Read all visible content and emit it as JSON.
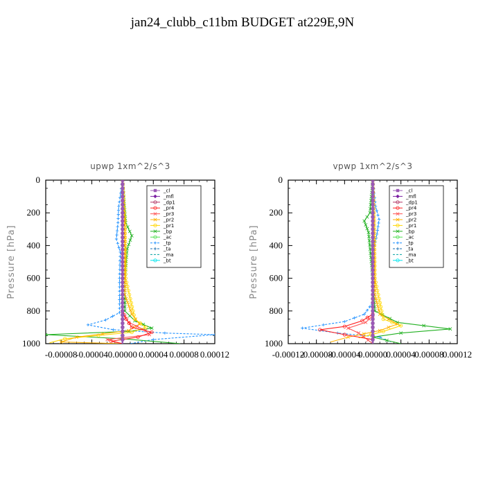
{
  "page_title": "jan24_clubb_c11bm  BUDGET at229E,9N",
  "legend_entries": [
    "_cl",
    "_mfl",
    "_dp1",
    "_pr4",
    "_pr3",
    "_pr2",
    "_pr1",
    "_bp",
    "_ac",
    "_tp",
    "_ta",
    "_ma",
    "_bt"
  ],
  "legend_colors": [
    "#9b59b6",
    "#7b1fa2",
    "#b03060",
    "#ff2020",
    "#ff5050",
    "#ffb000",
    "#ffd700",
    "#20b020",
    "#50e050",
    "#1e90ff",
    "#1a6fb0",
    "#00a0a0",
    "#00e5ee"
  ],
  "chart_data": [
    {
      "type": "line",
      "title": "upwp   1xm^2/s^3",
      "ylabel": "Pressure [hPa]",
      "xlabel": "",
      "xlim": [
        -0.0001,
        0.00012
      ],
      "ylim": [
        1000,
        0
      ],
      "xticks": [
        -8e-05,
        -4e-05,
        0,
        4e-05,
        8e-05,
        0.00012
      ],
      "xtick_labels": [
        "-0.00008",
        "-0.00004",
        "0.00000",
        "0.00004",
        "0.00008",
        "0.00012"
      ],
      "yticks": [
        0,
        200,
        400,
        600,
        800,
        1000
      ],
      "ytick_labels": [
        "0",
        "200",
        "400",
        "600",
        "800",
        "1000"
      ],
      "legend_position": "top-right",
      "series": [
        {
          "name": "_cl",
          "points": [
            [
              0,
              0
            ],
            [
              0,
              500
            ],
            [
              0,
              1000
            ]
          ]
        },
        {
          "name": "_mfl",
          "points": [
            [
              0,
              0
            ],
            [
              0,
              500
            ],
            [
              0,
              1000
            ]
          ]
        },
        {
          "name": "_dp1",
          "points": [
            [
              0,
              0
            ],
            [
              0,
              500
            ],
            [
              0,
              900
            ],
            [
              0,
              1000
            ]
          ]
        },
        {
          "name": "_pr4",
          "points": [
            [
              0,
              800
            ],
            [
              5e-06,
              850
            ],
            [
              1.2e-05,
              900
            ],
            [
              3.8e-05,
              930
            ],
            [
              2e-05,
              960
            ],
            [
              -1.5e-05,
              985
            ],
            [
              0,
              1000
            ]
          ]
        },
        {
          "name": "_pr3",
          "points": [
            [
              0,
              820
            ],
            [
              8e-06,
              870
            ],
            [
              3e-05,
              920
            ],
            [
              3.5e-05,
              945
            ],
            [
              -2e-05,
              975
            ],
            [
              0,
              1000
            ]
          ]
        },
        {
          "name": "_pr2",
          "points": [
            [
              0,
              0
            ],
            [
              3e-06,
              300
            ],
            [
              3e-06,
              700
            ],
            [
              1.2e-05,
              820
            ],
            [
              2.2e-05,
              880
            ],
            [
              8e-06,
              920
            ],
            [
              -6e-05,
              960
            ],
            [
              -8e-05,
              990
            ],
            [
              0,
              1000
            ]
          ]
        },
        {
          "name": "_pr1",
          "points": [
            [
              0,
              0
            ],
            [
              3e-06,
              250
            ],
            [
              4e-06,
              600
            ],
            [
              1.6e-05,
              850
            ],
            [
              3e-05,
              900
            ],
            [
              1.2e-05,
              930
            ],
            [
              -7.5e-05,
              970
            ],
            [
              -9.5e-05,
              995
            ]
          ]
        },
        {
          "name": "_bp",
          "points": [
            [
              0,
              0
            ],
            [
              4e-06,
              260
            ],
            [
              1.2e-05,
              340
            ],
            [
              6e-06,
              420
            ],
            [
              3e-06,
              600
            ],
            [
              3e-06,
              800
            ],
            [
              1.6e-05,
              860
            ],
            [
              3.8e-05,
              905
            ],
            [
              8e-06,
              925
            ],
            [
              -0.0001,
              945
            ],
            [
              0,
              970
            ],
            [
              7.5e-05,
              1000
            ]
          ]
        },
        {
          "name": "_ac",
          "points": [
            [
              0,
              0
            ],
            [
              0,
              500
            ],
            [
              0,
              1000
            ]
          ]
        },
        {
          "name": "_tp",
          "points": [
            [
              0,
              0
            ],
            [
              -5e-06,
              160
            ],
            [
              -6e-06,
              260
            ],
            [
              -8e-06,
              360
            ],
            [
              -3e-06,
              440
            ],
            [
              -4e-06,
              600
            ],
            [
              -4e-06,
              810
            ],
            [
              -2.2e-05,
              855
            ],
            [
              -4.5e-05,
              885
            ],
            [
              -1.2e-05,
              915
            ],
            [
              5.5e-05,
              935
            ],
            [
              0.00012,
              945
            ],
            [
              4e-05,
              975
            ],
            [
              1e-05,
              1000
            ]
          ]
        },
        {
          "name": "_ta",
          "points": [
            [
              0,
              0
            ],
            [
              0,
              500
            ],
            [
              0,
              1000
            ]
          ]
        },
        {
          "name": "_ma",
          "points": [
            [
              0,
              0
            ],
            [
              0,
              500
            ],
            [
              0,
              1000
            ]
          ]
        },
        {
          "name": "_bt",
          "points": [
            [
              0,
              0
            ],
            [
              0,
              500
            ],
            [
              0,
              1000
            ]
          ]
        }
      ]
    },
    {
      "type": "line",
      "title": "vpwp   1xm^2/s^3",
      "ylabel": "Pressure [hPa]",
      "xlabel": "",
      "xlim": [
        -0.00012,
        0.00012
      ],
      "ylim": [
        1000,
        0
      ],
      "xticks": [
        -0.00012,
        -8e-05,
        -4e-05,
        0,
        4e-05,
        8e-05,
        0.00012
      ],
      "xtick_labels": [
        "-0.00012",
        "-0.00008",
        "-0.00004",
        "0.00000",
        "0.00004",
        "0.00008",
        "0.00012"
      ],
      "yticks": [
        0,
        200,
        400,
        600,
        800,
        1000
      ],
      "ytick_labels": [
        "0",
        "200",
        "400",
        "600",
        "800",
        "1000"
      ],
      "legend_position": "top-right",
      "series": [
        {
          "name": "_cl",
          "points": [
            [
              0,
              0
            ],
            [
              0,
              500
            ],
            [
              0,
              1000
            ]
          ]
        },
        {
          "name": "_mfl",
          "points": [
            [
              0,
              0
            ],
            [
              0,
              500
            ],
            [
              0,
              1000
            ]
          ]
        },
        {
          "name": "_dp1",
          "points": [
            [
              0,
              0
            ],
            [
              0,
              500
            ],
            [
              0,
              1000
            ]
          ]
        },
        {
          "name": "_pr4",
          "points": [
            [
              0,
              820
            ],
            [
              -1.5e-05,
              860
            ],
            [
              -4e-05,
              895
            ],
            [
              -7.5e-05,
              915
            ],
            [
              -4e-05,
              945
            ],
            [
              0,
              975
            ],
            [
              0,
              1000
            ]
          ]
        },
        {
          "name": "_pr3",
          "points": [
            [
              0,
              830
            ],
            [
              -1e-05,
              870
            ],
            [
              -3.5e-05,
              905
            ],
            [
              -2e-05,
              935
            ],
            [
              0,
              1000
            ]
          ]
        },
        {
          "name": "_pr2",
          "points": [
            [
              0,
              0
            ],
            [
              2e-06,
              300
            ],
            [
              3e-06,
              700
            ],
            [
              1e-05,
              820
            ],
            [
              3.5e-05,
              880
            ],
            [
              1e-05,
              920
            ],
            [
              -3.5e-05,
              960
            ],
            [
              -6e-05,
              990
            ]
          ]
        },
        {
          "name": "_pr1",
          "points": [
            [
              0,
              0
            ],
            [
              2e-06,
              250
            ],
            [
              3e-06,
              600
            ],
            [
              1.5e-05,
              850
            ],
            [
              4e-05,
              890
            ],
            [
              1.5e-05,
              925
            ],
            [
              -2e-05,
              965
            ]
          ]
        },
        {
          "name": "_bp",
          "points": [
            [
              0,
              0
            ],
            [
              -4e-06,
              200
            ],
            [
              -1.2e-05,
              250
            ],
            [
              -6e-06,
              320
            ],
            [
              0,
              600
            ],
            [
              3e-06,
              800
            ],
            [
              3.5e-05,
              870
            ],
            [
              0.00011,
              910
            ],
            [
              4e-05,
              935
            ],
            [
              0,
              960
            ],
            [
              4e-05,
              1000
            ]
          ]
        },
        {
          "name": "_ac",
          "points": [
            [
              0,
              0
            ],
            [
              0,
              500
            ],
            [
              0,
              1000
            ]
          ]
        },
        {
          "name": "_tp",
          "points": [
            [
              0,
              0
            ],
            [
              4e-06,
              160
            ],
            [
              9e-06,
              240
            ],
            [
              6e-06,
              330
            ],
            [
              0,
              450
            ],
            [
              0,
              750
            ],
            [
              -1.2e-05,
              820
            ],
            [
              -4e-05,
              865
            ],
            [
              -0.0001,
              905
            ],
            [
              -5e-05,
              935
            ],
            [
              1e-05,
              960
            ],
            [
              2.5e-05,
              990
            ]
          ]
        },
        {
          "name": "_ta",
          "points": [
            [
              0,
              0
            ],
            [
              0,
              500
            ],
            [
              0,
              1000
            ]
          ]
        },
        {
          "name": "_ma",
          "points": [
            [
              0,
              0
            ],
            [
              0,
              500
            ],
            [
              0,
              1000
            ]
          ]
        },
        {
          "name": "_bt",
          "points": [
            [
              0,
              0
            ],
            [
              0,
              500
            ],
            [
              0,
              1000
            ]
          ]
        }
      ]
    }
  ]
}
